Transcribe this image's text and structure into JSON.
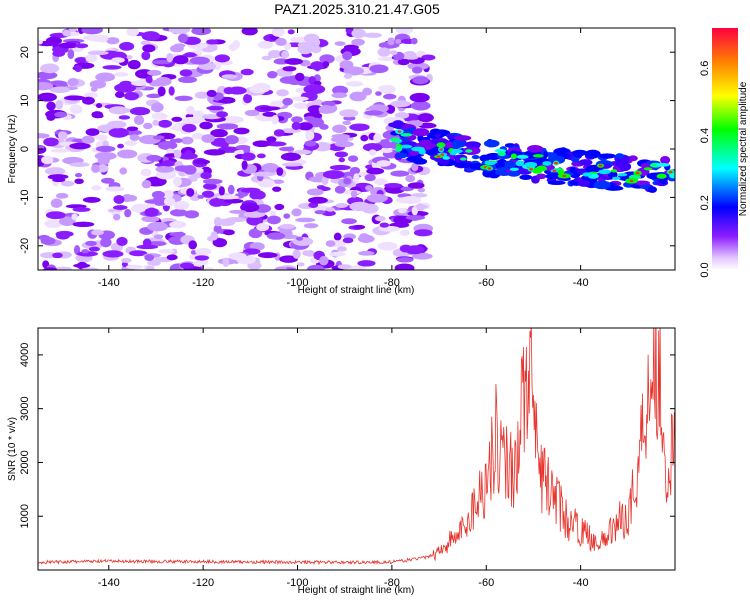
{
  "chart_data": [
    {
      "type": "heatmap",
      "title": "PAZ1.2025.310.21.47.G05",
      "xlabel": "Height of straight line (km)",
      "ylabel": "Frequency (Hz)",
      "xlim": [
        -155,
        -20
      ],
      "ylim": [
        -25,
        25
      ],
      "xticks": [
        -140,
        -120,
        -100,
        -80,
        -60,
        -40
      ],
      "yticks": [
        -20,
        -10,
        0,
        10,
        20
      ],
      "noise_region_x": [
        -155,
        -72
      ],
      "signal_band": {
        "x": [
          -80,
          -70,
          -60,
          -50,
          -40,
          -30,
          -20
        ],
        "center_frequency": [
          2,
          0,
          -2,
          -3,
          -4,
          -5,
          -5
        ]
      },
      "colorbar": {
        "label": "Normalized spectral amplitude",
        "range": [
          0,
          0.72
        ],
        "ticks": [
          "0.0",
          "0.2",
          "0.4",
          "0.6"
        ],
        "tick_values": [
          0,
          0.2,
          0.4,
          0.6
        ]
      }
    },
    {
      "type": "line",
      "xlabel": "Height of straight line (km)",
      "ylabel": "SNR (10 * v/v)",
      "xlim": [
        -155,
        -20
      ],
      "ylim": [
        0,
        4500
      ],
      "xticks": [
        -140,
        -120,
        -100,
        -80,
        -60,
        -40
      ],
      "yticks": [
        1000,
        2000,
        3000,
        4000
      ],
      "line_color": "#e8332c",
      "series": [
        {
          "name": "SNR",
          "x": [
            -155,
            -140,
            -120,
            -100,
            -80,
            -72,
            -68,
            -65,
            -63,
            -60,
            -58,
            -56,
            -54,
            -52,
            -51,
            -49,
            -47,
            -45,
            -43,
            -40,
            -38,
            -35,
            -33,
            -30,
            -28,
            -26,
            -24,
            -23,
            -22,
            -20
          ],
          "values": [
            150,
            170,
            160,
            150,
            150,
            250,
            550,
            800,
            1200,
            1800,
            2700,
            2200,
            2000,
            3600,
            4100,
            2000,
            1700,
            1400,
            1000,
            800,
            650,
            550,
            900,
            1100,
            1900,
            3600,
            4400,
            3700,
            2000,
            2400
          ]
        }
      ]
    }
  ]
}
